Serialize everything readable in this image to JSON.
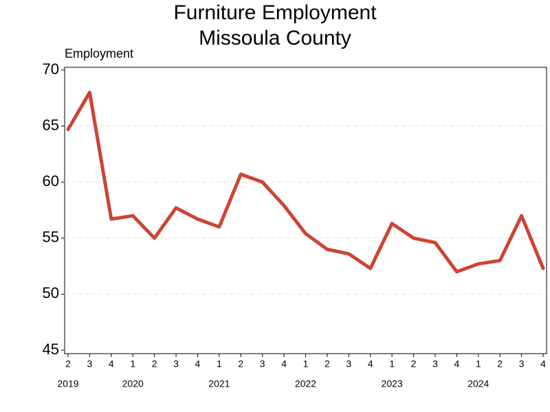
{
  "chart_data": {
    "type": "line",
    "title": "Furniture Employment",
    "subtitle": "Missoula County",
    "y_label": "Employment",
    "categories": [
      "2",
      "3",
      "4",
      "1",
      "2",
      "3",
      "4",
      "1",
      "2",
      "3",
      "4",
      "1",
      "2",
      "3",
      "4",
      "1",
      "2",
      "3",
      "4",
      "1",
      "2",
      "3",
      "4"
    ],
    "years": [
      "2019",
      null,
      null,
      "2020",
      null,
      null,
      null,
      "2021",
      null,
      null,
      null,
      "2022",
      null,
      null,
      null,
      "2023",
      null,
      null,
      null,
      "2024",
      null,
      null,
      null
    ],
    "series": [
      {
        "name": "Employment",
        "color": "#cc4433",
        "values": [
          64.7,
          68.0,
          56.7,
          57.0,
          55.0,
          57.7,
          56.7,
          56.0,
          60.7,
          60.0,
          57.9,
          55.4,
          54.0,
          53.6,
          52.3,
          56.3,
          55.0,
          54.6,
          52.0,
          52.7,
          53.0,
          57.0,
          52.3
        ]
      }
    ],
    "ylim": [
      45,
      70
    ],
    "yticks": [
      45,
      50,
      55,
      60,
      65,
      70
    ],
    "grid": true
  }
}
